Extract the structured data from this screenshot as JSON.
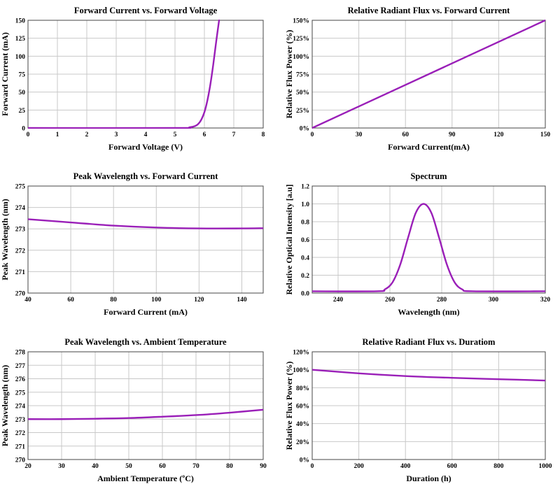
{
  "colors": {
    "curve": "#9a1fb8",
    "grid": "#c8c8c8",
    "frame": "#444444"
  },
  "chart_data": [
    {
      "type": "line",
      "title": "Forward Current vs. Forward Voltage",
      "xlabel": "Forward Voltage (V)",
      "ylabel": "Forward Current (mA)",
      "xlim": [
        0,
        8
      ],
      "ylim": [
        0,
        150
      ],
      "xticks": [
        0,
        1,
        2,
        3,
        4,
        5,
        6,
        7,
        8
      ],
      "yticks": [
        0,
        25,
        50,
        75,
        100,
        125,
        150
      ],
      "yticklabels": [
        "0",
        "25",
        "50",
        "75",
        "100",
        "125",
        "150"
      ],
      "grid": true,
      "series": [
        {
          "x": [
            0,
            5.0,
            5.5,
            5.7,
            5.8,
            5.9,
            6.0,
            6.1,
            6.2,
            6.3,
            6.4,
            6.5
          ],
          "y": [
            0,
            0,
            1,
            3,
            6,
            12,
            22,
            38,
            60,
            88,
            120,
            150
          ]
        }
      ]
    },
    {
      "type": "line",
      "title": "Relative Radiant Flux vs. Forward Current",
      "xlabel": "Forward Current(mA)",
      "ylabel": "Relative Flux Power (%)",
      "xlim": [
        0,
        150
      ],
      "ylim": [
        0,
        150
      ],
      "xticks": [
        0,
        30,
        60,
        90,
        120,
        150
      ],
      "yticks": [
        0,
        25,
        50,
        75,
        100,
        125,
        150
      ],
      "yticklabels": [
        "0%",
        "25%",
        "50%",
        "75%",
        "100%",
        "125%",
        "150%"
      ],
      "grid": true,
      "series": [
        {
          "x": [
            0,
            150
          ],
          "y": [
            0,
            150
          ]
        }
      ]
    },
    {
      "type": "line",
      "title": "Peak Wavelength vs. Forward Current",
      "xlabel": "Forward Current (mA)",
      "ylabel": "Peak Wavelength (nm)",
      "xlim": [
        40,
        150
      ],
      "ylim": [
        270,
        275
      ],
      "xticks": [
        40,
        60,
        80,
        100,
        120,
        140
      ],
      "yticks": [
        270,
        271,
        272,
        273,
        274,
        275
      ],
      "yticklabels": [
        "270",
        "271",
        "272",
        "273",
        "274",
        "275"
      ],
      "grid": true,
      "series": [
        {
          "x": [
            40,
            60,
            80,
            100,
            120,
            140,
            150
          ],
          "y": [
            273.45,
            273.3,
            273.15,
            273.06,
            273.02,
            273.02,
            273.03
          ]
        }
      ]
    },
    {
      "type": "line",
      "title": "Spectrum",
      "xlabel": "Wavelength (nm)",
      "ylabel": "Relative Optical Intensity [a.u]",
      "xlim": [
        230,
        320
      ],
      "ylim": [
        0,
        1.2
      ],
      "xticks": [
        240,
        260,
        280,
        300,
        320
      ],
      "yticks": [
        0,
        0.2,
        0.4,
        0.6,
        0.8,
        1.0,
        1.2
      ],
      "yticklabels": [
        "0.0",
        "0.2",
        "0.4",
        "0.6",
        "0.8",
        "1.0",
        "1.2"
      ],
      "grid": true,
      "series": [
        {
          "x": [
            230,
            255,
            258,
            261,
            264,
            267,
            270,
            273,
            276,
            279,
            282,
            285,
            288,
            292,
            320
          ],
          "y": [
            0.02,
            0.02,
            0.04,
            0.12,
            0.32,
            0.62,
            0.9,
            1.0,
            0.9,
            0.62,
            0.32,
            0.12,
            0.04,
            0.02,
            0.02
          ]
        }
      ]
    },
    {
      "type": "line",
      "title": "Peak Wavelength vs. Ambient Temperature",
      "xlabel": "Ambient Temperature (ºC)",
      "ylabel": "Peak Wavelength (nm)",
      "xlim": [
        20,
        90
      ],
      "ylim": [
        270,
        278
      ],
      "xticks": [
        20,
        30,
        40,
        50,
        60,
        70,
        80,
        90
      ],
      "yticks": [
        270,
        271,
        272,
        273,
        274,
        275,
        276,
        277,
        278
      ],
      "yticklabels": [
        "270",
        "271",
        "272",
        "273",
        "274",
        "275",
        "276",
        "277",
        "278"
      ],
      "grid": true,
      "series": [
        {
          "x": [
            20,
            30,
            40,
            50,
            60,
            70,
            80,
            90
          ],
          "y": [
            273.0,
            273.0,
            273.03,
            273.08,
            273.18,
            273.3,
            273.48,
            273.7
          ]
        }
      ]
    },
    {
      "type": "line",
      "title": "Relative Radiant Flux vs. Duratiom",
      "xlabel": "Duration (h)",
      "ylabel": "Relative Flux Power (%)",
      "xlim": [
        0,
        1000
      ],
      "ylim": [
        0,
        120
      ],
      "xticks": [
        0,
        200,
        400,
        600,
        800,
        1000
      ],
      "yticks": [
        0,
        20,
        40,
        60,
        80,
        100,
        120
      ],
      "yticklabels": [
        "0%",
        "20%",
        "40%",
        "60%",
        "80%",
        "100%",
        "120%"
      ],
      "grid": true,
      "series": [
        {
          "x": [
            0,
            200,
            400,
            600,
            800,
            1000
          ],
          "y": [
            100,
            96,
            93,
            91,
            89.5,
            88
          ]
        }
      ]
    }
  ]
}
